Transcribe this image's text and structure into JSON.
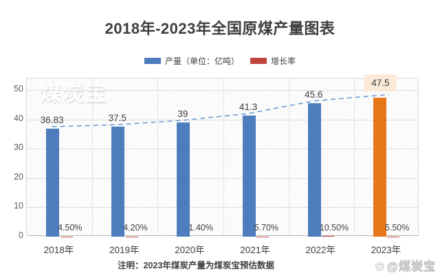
{
  "chart_data": {
    "type": "bar",
    "title": "2018年-2023年全国原煤产量图表",
    "categories": [
      "2018年",
      "2019年",
      "2020年",
      "2021年",
      "2022年",
      "2023年"
    ],
    "series": [
      {
        "name": "产量（单位：亿吨）",
        "color": "#4e7dbe",
        "values": [
          36.83,
          37.5,
          39,
          41.3,
          45.6,
          47.5
        ],
        "value_labels": [
          "36.83",
          "37.5",
          "39",
          "41.3",
          "45.6",
          "47.5"
        ],
        "last_bar_color": "#e8761b",
        "last_label_bg": "#fcead8"
      },
      {
        "name": "增长率",
        "color": "#c0443c",
        "values": [
          0.045,
          0.042,
          0.014,
          0.057,
          0.105,
          0.055
        ],
        "value_labels": [
          "4.50%",
          "4.20%",
          "1.40%",
          "5.70%",
          "10.50%",
          "5.50%"
        ]
      }
    ],
    "trendline": {
      "style": "dashed",
      "color": "#6e9bd2",
      "follows": "产量（单位：亿吨）"
    },
    "ylim": [
      0,
      50
    ],
    "yticks": [
      0,
      10,
      20,
      30,
      40,
      50
    ],
    "grid": true,
    "legend_position": "top",
    "plot_background": "diagonal-hatch"
  },
  "note": "注明：2023年煤炭产量为煤炭宝预估数据",
  "watermarks": {
    "top_left": "煤炭宝",
    "bottom_right": "@煤炭宝",
    "bottom_right_icon": "✿"
  }
}
